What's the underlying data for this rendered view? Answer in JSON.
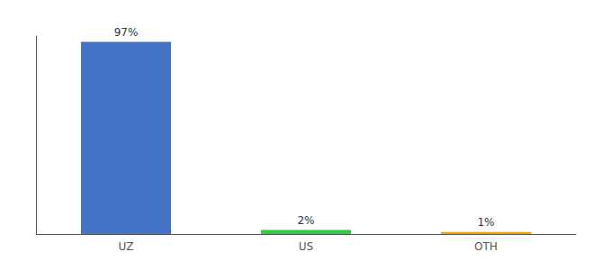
{
  "chart_data": {
    "type": "bar",
    "categories": [
      "UZ",
      "US",
      "OTH"
    ],
    "values": [
      97,
      2,
      1
    ],
    "value_labels": [
      "97%",
      "2%",
      "1%"
    ],
    "colors": [
      "#4472c4",
      "#2ecc40",
      "#f0a500"
    ],
    "ylim": [
      0,
      100
    ],
    "grid": false,
    "data_labels": true,
    "tick_labels": "x"
  }
}
